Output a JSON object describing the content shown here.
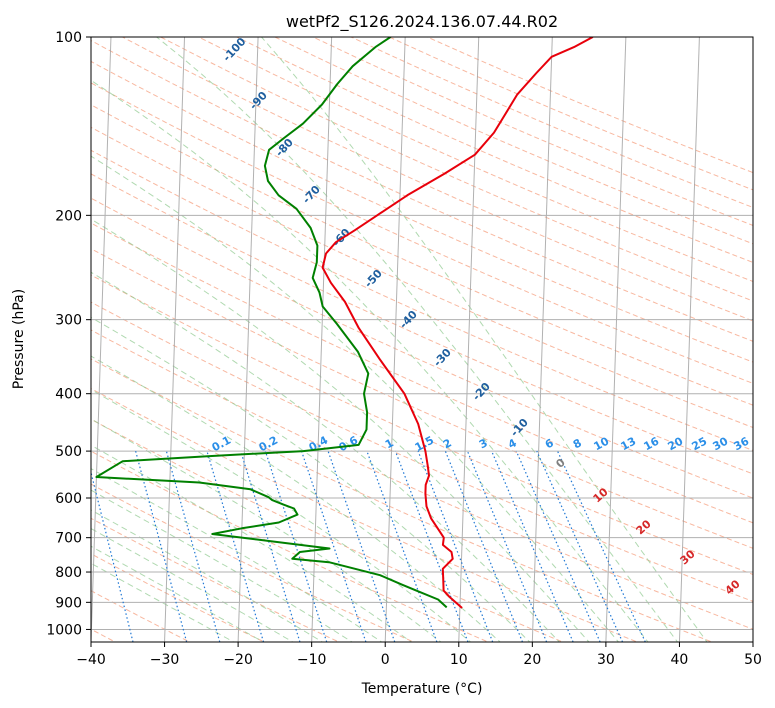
{
  "colors": {
    "temperature": "#e8000b",
    "dewpoint": "#008000",
    "isobar": "#b0b0b0",
    "isotherm": "#9e9e9e",
    "dry_adiabat": "#f5a080",
    "moist_adiabat": "#8fc98f",
    "mixing_ratio": "#1f77d4",
    "adiabat_label": "#1f5f9f",
    "mixing_label": "#2b8fe8",
    "isotherm_label": "#d62728"
  },
  "chart_data": {
    "type": "line",
    "title": "wetPf2_S126.2024.136.07.44.R02",
    "xlabel": "Temperature (°C)",
    "ylabel": "Pressure (hPa)",
    "xlim": [
      -40,
      50
    ],
    "ylim": [
      1050,
      100
    ],
    "y_scale": "log",
    "x_ticks": [
      -40,
      -30,
      -20,
      -10,
      0,
      10,
      20,
      30,
      40,
      50
    ],
    "y_ticks": [
      100,
      200,
      300,
      400,
      500,
      600,
      700,
      800,
      900,
      1000
    ],
    "x_tick_labels": [
      "−40",
      "−30",
      "−20",
      "−10",
      "0",
      "10",
      "20",
      "30",
      "40",
      "50"
    ],
    "y_tick_labels": [
      "100",
      "200",
      "300",
      "400",
      "500",
      "600",
      "700",
      "800",
      "900",
      "1000"
    ],
    "grid": true,
    "series": [
      {
        "key": "temperature",
        "points": [
          [
            10.3,
            920
          ],
          [
            8.5,
            880
          ],
          [
            7.7,
            860
          ],
          [
            7.6,
            820
          ],
          [
            7.5,
            790
          ],
          [
            8.8,
            760
          ],
          [
            8.6,
            740
          ],
          [
            7.4,
            720
          ],
          [
            7.5,
            700
          ],
          [
            6.8,
            680
          ],
          [
            5.7,
            650
          ],
          [
            5.0,
            620
          ],
          [
            4.8,
            590
          ],
          [
            4.8,
            570
          ],
          [
            5.2,
            550
          ],
          [
            5.0,
            530
          ],
          [
            4.6,
            500
          ],
          [
            3.5,
            450
          ],
          [
            1.5,
            400
          ],
          [
            -2.0,
            350
          ],
          [
            -5.0,
            310
          ],
          [
            -7.0,
            280
          ],
          [
            -9.0,
            260
          ],
          [
            -10.2,
            245
          ],
          [
            -9.8,
            232
          ],
          [
            -8.5,
            222
          ],
          [
            -6.0,
            212
          ],
          [
            -3.0,
            200
          ],
          [
            1.0,
            185
          ],
          [
            6.0,
            170
          ],
          [
            10.0,
            158
          ],
          [
            12.5,
            145
          ],
          [
            13.5,
            138
          ],
          [
            15.5,
            125
          ],
          [
            18.0,
            115
          ],
          [
            20.0,
            108
          ],
          [
            23.0,
            104
          ],
          [
            25.5,
            100
          ]
        ]
      },
      {
        "key": "dewpoint",
        "points": [
          [
            8.2,
            918
          ],
          [
            7.0,
            890
          ],
          [
            4.0,
            860
          ],
          [
            2.0,
            840
          ],
          [
            -1.0,
            810
          ],
          [
            -8.0,
            770
          ],
          [
            -13.0,
            760
          ],
          [
            -12.0,
            740
          ],
          [
            -8.0,
            730
          ],
          [
            -12.0,
            720
          ],
          [
            -24.0,
            690
          ],
          [
            -20.0,
            675
          ],
          [
            -15.0,
            660
          ],
          [
            -12.5,
            640
          ],
          [
            -13.0,
            625
          ],
          [
            -14.5,
            615
          ],
          [
            -16.0,
            605
          ],
          [
            -16.5,
            598
          ],
          [
            -19.0,
            580
          ],
          [
            -26.0,
            565
          ],
          [
            -40.0,
            553
          ],
          [
            -36.5,
            520
          ],
          [
            -25.0,
            510
          ],
          [
            -12.0,
            500
          ],
          [
            -4.5,
            488
          ],
          [
            -3.5,
            460
          ],
          [
            -3.5,
            430
          ],
          [
            -4.0,
            400
          ],
          [
            -3.5,
            370
          ],
          [
            -5.0,
            340
          ],
          [
            -8.0,
            305
          ],
          [
            -10.0,
            285
          ],
          [
            -10.5,
            270
          ],
          [
            -11.5,
            255
          ],
          [
            -11.0,
            240
          ],
          [
            -11.0,
            225
          ],
          [
            -12.0,
            210
          ],
          [
            -14.0,
            195
          ],
          [
            -16.5,
            185
          ],
          [
            -18.0,
            175
          ],
          [
            -18.5,
            165
          ],
          [
            -18.0,
            155
          ],
          [
            -16.0,
            148
          ],
          [
            -13.5,
            140
          ],
          [
            -11.0,
            130
          ],
          [
            -9.0,
            120
          ],
          [
            -7.0,
            112
          ],
          [
            -4.0,
            104
          ],
          [
            -2.0,
            100
          ]
        ]
      }
    ],
    "dry_adiabat_labels": [
      "-100",
      "-90",
      "-80",
      "-70",
      "-60",
      "-50",
      "-40",
      "-30",
      "-20",
      "-10"
    ],
    "mixing_ratio_labels": [
      "0.1",
      "0.2",
      "0.4",
      "0.6",
      "1",
      "1.5",
      "2",
      "3",
      "4",
      "6",
      "8",
      "10",
      "13",
      "16",
      "20",
      "25",
      "30",
      "36"
    ],
    "isotherm_labels": [
      "0",
      "10",
      "20",
      "30",
      "40"
    ]
  }
}
